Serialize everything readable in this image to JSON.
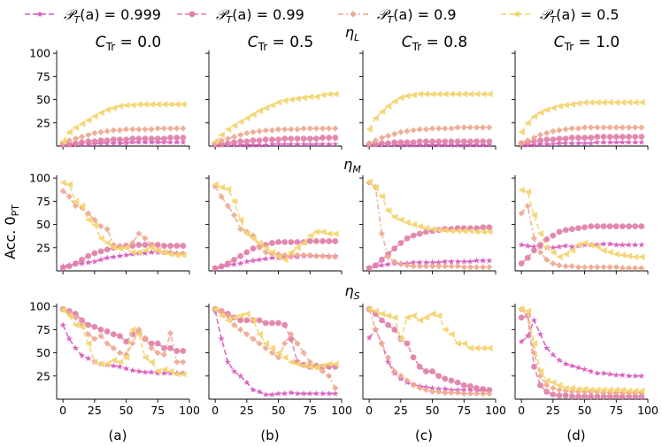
{
  "chart_data": {
    "type": "line",
    "x": [
      0,
      5,
      10,
      15,
      20,
      25,
      30,
      35,
      40,
      45,
      50,
      55,
      60,
      65,
      70,
      75,
      80,
      85,
      90,
      95
    ],
    "xlim": [
      -5,
      100
    ],
    "ylim": [
      0,
      103
    ],
    "x_ticks": [
      "0",
      "25",
      "50",
      "75",
      "100"
    ],
    "y_ticks": [
      "25",
      "50",
      "75",
      "100"
    ],
    "ylabel_main": "Acc.",
    "ylabel_sub": "0",
    "ylabel_subscript": "PT",
    "columns": [
      {
        "c_label": "C",
        "c_sub": "Tr",
        "c_value": "= 0.0",
        "letter": "(a)"
      },
      {
        "c_label": "C",
        "c_sub": "Tr",
        "c_value": "= 0.5",
        "letter": "(b)"
      },
      {
        "c_label": "C",
        "c_sub": "Tr",
        "c_value": "= 0.8",
        "letter": "(c)"
      },
      {
        "c_label": "C",
        "c_sub": "Tr",
        "c_value": "= 1.0",
        "letter": "(d)"
      }
    ],
    "rows": [
      {
        "eta": "η",
        "sub": "L"
      },
      {
        "eta": "η",
        "sub": "M"
      },
      {
        "eta": "η",
        "sub": "S"
      }
    ],
    "legend": [
      {
        "label_prefix": "𝒫",
        "label_sub": "T",
        "label_arg": "(a)",
        "label_value": "= 0.999",
        "color": "#d85bbf",
        "marker": "star",
        "dash": "6,3"
      },
      {
        "label_prefix": "𝒫",
        "label_sub": "T",
        "label_arg": "(a)",
        "label_value": "= 0.99",
        "color": "#e07fa8",
        "marker": "circle",
        "dash": "6,3"
      },
      {
        "label_prefix": "𝒫",
        "label_sub": "T",
        "label_arg": "(a)",
        "label_value": "= 0.9",
        "color": "#eea890",
        "marker": "diamond",
        "dash": "6,3,2,3"
      },
      {
        "label_prefix": "𝒫",
        "label_sub": "T",
        "label_arg": "(a)",
        "label_value": "= 0.5",
        "color": "#f4d470",
        "marker": "triangle-left",
        "dash": "6,3"
      }
    ],
    "panels": [
      [
        [
          [
            1,
            1,
            1,
            2,
            2,
            2,
            3,
            3,
            3,
            3,
            3,
            4,
            4,
            4,
            4,
            4,
            4,
            4,
            4,
            4
          ],
          [
            2,
            2,
            3,
            4,
            5,
            5,
            6,
            6,
            7,
            7,
            7,
            8,
            8,
            8,
            8,
            8,
            8,
            9,
            9,
            9
          ],
          [
            3,
            6,
            8,
            10,
            12,
            14,
            15,
            16,
            17,
            17,
            18,
            18,
            18,
            18,
            18,
            19,
            19,
            19,
            19,
            19
          ],
          [
            5,
            15,
            20,
            24,
            28,
            32,
            36,
            39,
            41,
            43,
            44,
            44,
            45,
            45,
            45,
            45,
            45,
            45,
            45,
            45
          ]
        ],
        [
          [
            5,
            6,
            7,
            8,
            9,
            10,
            12,
            14,
            15,
            16,
            17,
            18,
            19,
            19,
            20,
            20,
            20,
            20,
            19,
            19
          ],
          [
            3,
            5,
            8,
            12,
            16,
            19,
            21,
            23,
            25,
            26,
            27,
            27,
            28,
            28,
            28,
            28,
            27,
            27,
            27,
            27
          ],
          [
            86,
            80,
            70,
            68,
            62,
            55,
            48,
            45,
            28,
            27,
            26,
            30,
            40,
            35,
            28,
            22,
            20,
            19,
            18,
            18
          ],
          [
            95,
            93,
            75,
            70,
            55,
            50,
            35,
            30,
            25,
            24,
            25,
            20,
            20,
            22,
            25,
            22,
            20,
            18,
            17,
            17
          ]
        ],
        [
          [
            80,
            65,
            55,
            47,
            44,
            40,
            38,
            37,
            36,
            35,
            33,
            31,
            30,
            29,
            29,
            28,
            28,
            28,
            28,
            28
          ],
          [
            97,
            95,
            92,
            85,
            80,
            78,
            75,
            73,
            70,
            68,
            62,
            70,
            72,
            65,
            60,
            60,
            55,
            55,
            52,
            52
          ],
          [
            97,
            93,
            88,
            80,
            70,
            65,
            68,
            60,
            55,
            50,
            48,
            60,
            75,
            66,
            55,
            50,
            48,
            71,
            40,
            40
          ],
          [
            96,
            90,
            80,
            78,
            60,
            40,
            38,
            38,
            42,
            40,
            45,
            75,
            70,
            45,
            40,
            30,
            32,
            30,
            27,
            27
          ]
        ]
      ],
      [
        [
          [
            1,
            1,
            1,
            1,
            1,
            1,
            1,
            1,
            1,
            2,
            2,
            2,
            2,
            2,
            2,
            2,
            2,
            2,
            2,
            2
          ],
          [
            2,
            2,
            3,
            4,
            5,
            5,
            6,
            6,
            7,
            7,
            7,
            8,
            8,
            8,
            8,
            8,
            8,
            9,
            9,
            9
          ],
          [
            3,
            6,
            8,
            10,
            12,
            14,
            15,
            16,
            17,
            17,
            18,
            18,
            18,
            18,
            19,
            19,
            19,
            19,
            19,
            19
          ],
          [
            5,
            12,
            18,
            22,
            26,
            30,
            34,
            38,
            41,
            44,
            47,
            49,
            50,
            51,
            52,
            53,
            53,
            55,
            56,
            56
          ]
        ],
        [
          [
            2,
            4,
            6,
            7,
            8,
            10,
            11,
            12,
            13,
            14,
            14,
            15,
            15,
            15,
            16,
            16,
            16,
            16,
            16,
            16
          ],
          [
            3,
            5,
            8,
            12,
            16,
            20,
            24,
            26,
            28,
            30,
            31,
            31,
            31,
            31,
            31,
            32,
            32,
            32,
            32,
            32
          ],
          [
            91,
            80,
            70,
            60,
            45,
            42,
            38,
            25,
            20,
            18,
            18,
            17,
            16,
            17,
            17,
            17,
            16,
            16,
            15,
            15
          ],
          [
            93,
            90,
            88,
            75,
            55,
            40,
            35,
            30,
            25,
            20,
            15,
            12,
            20,
            25,
            30,
            38,
            42,
            42,
            40,
            40
          ]
        ],
        [
          [
            95,
            65,
            40,
            30,
            25,
            18,
            10,
            8,
            5,
            5,
            6,
            6,
            7,
            6,
            6,
            6,
            6,
            6,
            6,
            6
          ],
          [
            97,
            95,
            92,
            88,
            85,
            85,
            85,
            85,
            82,
            82,
            82,
            80,
            65,
            40,
            37,
            35,
            36,
            35,
            35,
            35
          ],
          [
            97,
            95,
            90,
            80,
            75,
            70,
            65,
            60,
            55,
            50,
            45,
            60,
            70,
            60,
            50,
            40,
            35,
            30,
            25,
            12
          ],
          [
            97,
            90,
            85,
            88,
            90,
            92,
            85,
            70,
            60,
            55,
            50,
            45,
            40,
            38,
            36,
            35,
            34,
            36,
            38,
            38
          ]
        ]
      ],
      [
        [
          [
            1,
            1,
            1,
            1,
            1,
            1,
            1,
            1,
            1,
            1,
            1,
            1,
            1,
            1,
            1,
            1,
            1,
            1,
            1,
            1
          ],
          [
            2,
            2,
            3,
            3,
            4,
            4,
            4,
            4,
            5,
            5,
            5,
            5,
            5,
            5,
            5,
            5,
            5,
            5,
            5,
            5
          ],
          [
            3,
            6,
            9,
            11,
            13,
            15,
            16,
            17,
            18,
            18,
            19,
            19,
            19,
            19,
            20,
            20,
            20,
            20,
            20,
            20
          ],
          [
            18,
            30,
            37,
            43,
            48,
            52,
            54,
            55,
            56,
            56,
            56,
            56,
            56,
            56,
            56,
            56,
            56,
            56,
            56,
            56
          ]
        ],
        [
          [
            3,
            5,
            6,
            7,
            8,
            8,
            8,
            9,
            9,
            9,
            9,
            9,
            10,
            10,
            10,
            10,
            10,
            11,
            11,
            11
          ],
          [
            3,
            6,
            12,
            18,
            24,
            30,
            35,
            38,
            40,
            42,
            43,
            44,
            45,
            45,
            46,
            46,
            46,
            46,
            47,
            47
          ],
          [
            95,
            90,
            40,
            15,
            10,
            7,
            6,
            5,
            5,
            5,
            5,
            5,
            5,
            5,
            5,
            4,
            4,
            4,
            4,
            4
          ],
          [
            96,
            90,
            80,
            65,
            58,
            55,
            52,
            50,
            48,
            46,
            45,
            44,
            44,
            43,
            43,
            43,
            43,
            42,
            42,
            42
          ]
        ],
        [
          [
            66,
            75,
            60,
            40,
            28,
            22,
            18,
            16,
            14,
            13,
            12,
            11,
            11,
            10,
            10,
            10,
            10,
            9,
            9,
            9
          ],
          [
            97,
            92,
            85,
            80,
            75,
            65,
            60,
            45,
            35,
            30,
            30,
            25,
            22,
            20,
            18,
            15,
            14,
            12,
            11,
            10
          ],
          [
            97,
            75,
            60,
            45,
            30,
            25,
            20,
            15,
            12,
            10,
            8,
            8,
            7,
            7,
            7,
            6,
            6,
            6,
            6,
            6
          ],
          [
            97,
            95,
            92,
            90,
            88,
            65,
            88,
            90,
            85,
            88,
            92,
            90,
            75,
            70,
            60,
            60,
            55,
            55,
            55,
            55
          ]
        ]
      ],
      [
        [
          [
            1,
            1,
            1,
            2,
            2,
            2,
            3,
            3,
            3,
            3,
            3,
            3,
            4,
            4,
            4,
            4,
            4,
            4,
            4,
            4
          ],
          [
            3,
            4,
            5,
            6,
            7,
            7,
            8,
            8,
            9,
            9,
            9,
            9,
            10,
            10,
            10,
            10,
            10,
            10,
            10,
            10
          ],
          [
            3,
            6,
            9,
            12,
            14,
            16,
            17,
            18,
            19,
            19,
            20,
            20,
            20,
            20,
            20,
            20,
            20,
            20,
            20,
            20
          ],
          [
            15,
            25,
            32,
            36,
            39,
            41,
            43,
            44,
            45,
            46,
            47,
            47,
            47,
            47,
            47,
            47,
            47,
            47,
            47,
            47
          ]
        ],
        [
          [
            28,
            27,
            26,
            26,
            25,
            25,
            26,
            27,
            26,
            27,
            28,
            28,
            28,
            29,
            29,
            28,
            28,
            28,
            28,
            28
          ],
          [
            8,
            14,
            22,
            28,
            34,
            38,
            42,
            44,
            45,
            46,
            47,
            48,
            48,
            48,
            48,
            48,
            48,
            48,
            48,
            48
          ],
          [
            62,
            70,
            35,
            20,
            12,
            8,
            6,
            5,
            5,
            4,
            4,
            4,
            4,
            4,
            4,
            4,
            3,
            3,
            3,
            3
          ],
          [
            87,
            85,
            60,
            40,
            25,
            20,
            15,
            18,
            22,
            28,
            30,
            28,
            26,
            22,
            20,
            18,
            17,
            16,
            15,
            15
          ]
        ],
        [
          [
            62,
            68,
            85,
            70,
            55,
            48,
            42,
            38,
            36,
            34,
            32,
            30,
            28,
            28,
            27,
            26,
            26,
            25,
            25,
            25
          ],
          [
            88,
            90,
            35,
            15,
            8,
            5,
            4,
            4,
            3,
            3,
            3,
            3,
            3,
            3,
            3,
            3,
            3,
            3,
            3,
            3
          ],
          [
            97,
            90,
            50,
            25,
            15,
            12,
            10,
            9,
            8,
            8,
            8,
            8,
            8,
            7,
            7,
            7,
            7,
            7,
            7,
            7
          ],
          [
            97,
            95,
            60,
            30,
            20,
            18,
            15,
            12,
            12,
            11,
            11,
            10,
            10,
            10,
            10,
            10,
            10,
            9,
            9,
            9
          ]
        ]
      ]
    ]
  }
}
